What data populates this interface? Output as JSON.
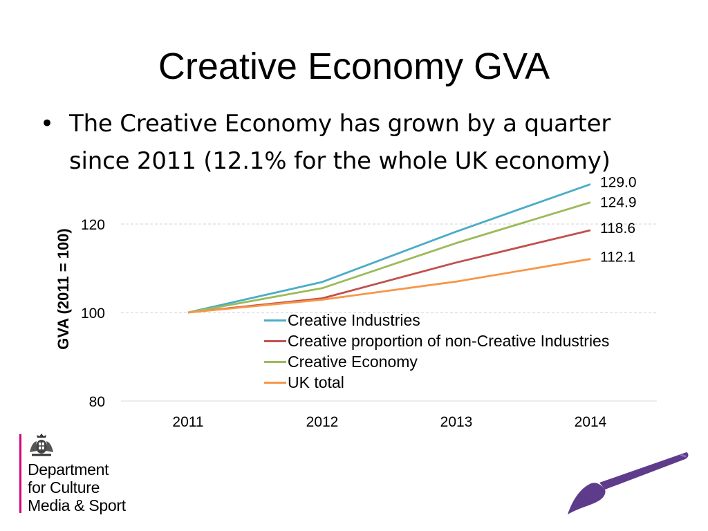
{
  "slide": {
    "title": "Creative Economy GVA",
    "bullet_symbol": "•",
    "bullet_line1": "The Creative Economy has grown by a quarter",
    "bullet_line2": "since 2011 (12.1% for the whole UK economy)"
  },
  "logo": {
    "line1": "Department",
    "line2": "for Culture",
    "line3": "Media & Sport"
  },
  "colors": {
    "creative_industries": "#4bacc6",
    "creative_proportion": "#c0504d",
    "creative_economy": "#9bbb59",
    "uk_total": "#f79646",
    "logo_bar": "#d4007a",
    "brush": "#5f3b8b"
  },
  "icons": {
    "crest": "royal-crest-icon",
    "brush": "paintbrush-icon"
  },
  "chart_data": {
    "type": "line",
    "title": "",
    "xlabel": "",
    "ylabel": "GVA (2011 = 100)",
    "x": [
      "2011",
      "2012",
      "2013",
      "2014"
    ],
    "ylim": [
      80,
      130
    ],
    "yticks": [
      80,
      100,
      120
    ],
    "ytick_labels": [
      "80",
      "100",
      "120"
    ],
    "grid": "horizontal dashed",
    "legend_position": "center",
    "series": [
      {
        "name": "Creative Industries",
        "color": "#4bacc6",
        "values": [
          100,
          106.9,
          118.3,
          129.0
        ],
        "end_label": "129.0"
      },
      {
        "name": "Creative proportion of non-Creative Industries",
        "color": "#c0504d",
        "values": [
          100,
          103.2,
          111.3,
          118.6
        ],
        "end_label": "118.6"
      },
      {
        "name": "Creative Economy",
        "color": "#9bbb59",
        "values": [
          100,
          105.5,
          115.7,
          124.9
        ],
        "end_label": "124.9"
      },
      {
        "name": "UK total",
        "color": "#f79646",
        "values": [
          100,
          102.9,
          107.0,
          112.1
        ],
        "end_label": "112.1"
      }
    ]
  }
}
